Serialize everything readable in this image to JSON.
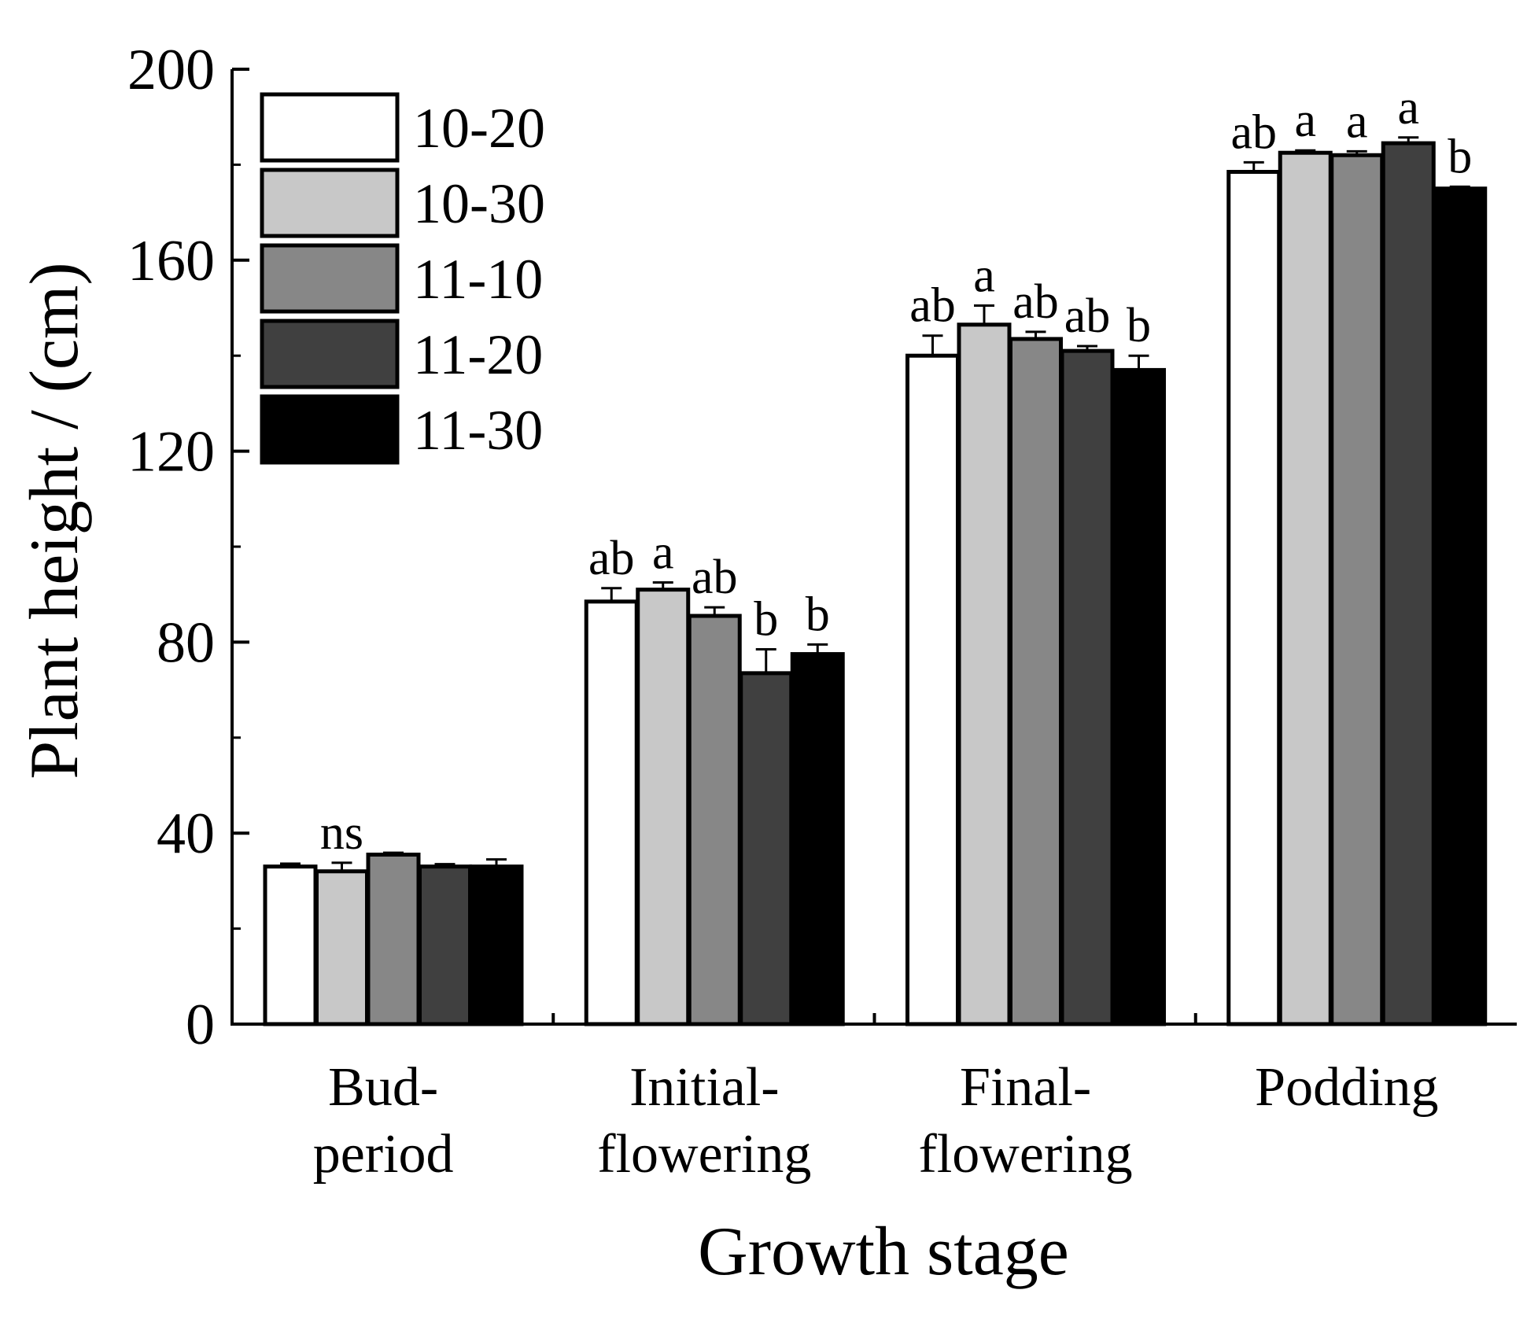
{
  "chart_data": {
    "type": "bar",
    "title": "",
    "xlabel": "Growth stage",
    "ylabel": "Plant height / (cm)",
    "ylim": [
      0,
      200
    ],
    "yticks": [
      0,
      40,
      80,
      120,
      160,
      200
    ],
    "grid": false,
    "legend_position": "top-left",
    "categories": [
      [
        "Bud-",
        "period"
      ],
      [
        "Initial-",
        "flowering"
      ],
      [
        "Final-",
        "flowering"
      ],
      [
        "Podding"
      ]
    ],
    "series": [
      {
        "name": "10-20",
        "color": "#ffffff",
        "values": [
          33,
          88.5,
          140,
          178.5
        ],
        "errors": [
          0.6,
          2.8,
          4.2,
          2.0
        ],
        "letters": [
          "",
          "ab",
          "ab",
          "ab"
        ]
      },
      {
        "name": "10-30",
        "color": "#c8c8c8",
        "values": [
          32,
          91,
          146.5,
          182.5
        ],
        "errors": [
          1.8,
          1.5,
          4.0,
          0.5
        ],
        "letters": [
          "ns",
          "a",
          "a",
          "a"
        ]
      },
      {
        "name": "11-10",
        "color": "#878787",
        "values": [
          35.5,
          85.5,
          143.5,
          182
        ],
        "errors": [
          0.4,
          1.8,
          1.5,
          0.8
        ],
        "letters": [
          "",
          "ab",
          "ab",
          "a"
        ]
      },
      {
        "name": "11-20",
        "color": "#404040",
        "values": [
          33,
          73.5,
          141,
          184.5
        ],
        "errors": [
          0.5,
          5.0,
          1.0,
          1.2
        ],
        "letters": [
          "",
          "b",
          "ab",
          "a"
        ]
      },
      {
        "name": "11-30",
        "color": "#000000",
        "values": [
          33,
          77.5,
          137,
          175
        ],
        "errors": [
          1.5,
          2.0,
          3.0,
          0.4
        ],
        "letters": [
          "",
          "b",
          "b",
          "b"
        ]
      }
    ]
  }
}
